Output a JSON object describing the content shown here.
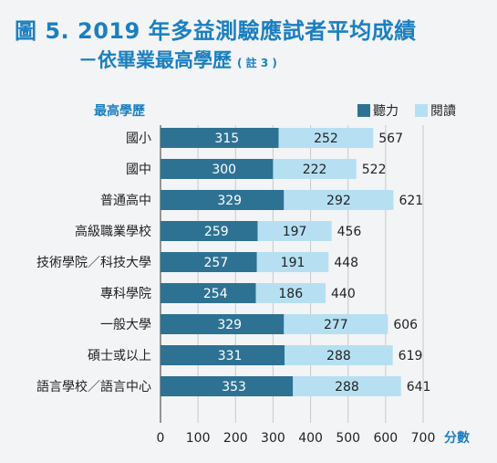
{
  "title": {
    "line1": "圖 5. 2019 年多益測驗應試者平均成績",
    "line2": "－依畢業最高學歷",
    "note": "( 註 3 )"
  },
  "colors": {
    "title": "#1b7fbf",
    "listening": "#2e7293",
    "reading": "#b6e0f2",
    "background": "#f3f4f6",
    "grid": "#c9c9c9"
  },
  "chart_data": {
    "type": "bar",
    "orientation": "horizontal",
    "stacked": true,
    "ylabel": "最高學歷",
    "xlabel": "分數",
    "xlim": [
      0,
      700
    ],
    "xticks": [
      "0",
      "100",
      "200",
      "300",
      "400",
      "500",
      "600",
      "700"
    ],
    "grid": true,
    "legend_position": "top-right",
    "categories": [
      "國小",
      "國中",
      "普通高中",
      "高級職業學校",
      "技術學院／科技大學",
      "專科學院",
      "一般大學",
      "碩士或以上",
      "語言學校／語言中心"
    ],
    "series": [
      {
        "name": "聽力",
        "values": [
          315,
          300,
          329,
          259,
          257,
          254,
          329,
          331,
          353
        ]
      },
      {
        "name": "閱讀",
        "values": [
          252,
          222,
          292,
          197,
          191,
          186,
          277,
          288,
          288
        ]
      }
    ],
    "totals": [
      567,
      522,
      621,
      456,
      448,
      440,
      606,
      619,
      641
    ]
  }
}
